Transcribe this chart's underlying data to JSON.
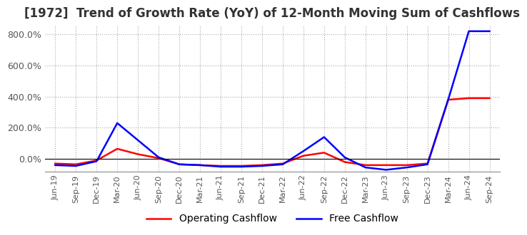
{
  "title": "[1972]  Trend of Growth Rate (YoY) of 12-Month Moving Sum of Cashflows",
  "title_fontsize": 12,
  "background_color": "#ffffff",
  "grid_color": "#aaaaaa",
  "operating_color": "#ff0000",
  "free_color": "#0000ff",
  "legend_labels": [
    "Operating Cashflow",
    "Free Cashflow"
  ],
  "ylim": [
    -80,
    860
  ],
  "yticks": [
    0,
    200,
    400,
    600,
    800
  ],
  "ytick_labels": [
    "0.0%",
    "200.0%",
    "400.0%",
    "600.0%",
    "800.0%"
  ],
  "x_labels": [
    "Jun-19",
    "Sep-19",
    "Dec-19",
    "Mar-20",
    "Jun-20",
    "Sep-20",
    "Dec-20",
    "Mar-21",
    "Jun-21",
    "Sep-21",
    "Dec-21",
    "Mar-22",
    "Jun-22",
    "Sep-22",
    "Dec-22",
    "Mar-23",
    "Jun-23",
    "Sep-23",
    "Dec-23",
    "Mar-24",
    "Jun-24",
    "Sep-24"
  ],
  "operating_cashflow": [
    -30,
    -35,
    -10,
    65,
    30,
    5,
    -35,
    -40,
    -45,
    -45,
    -40,
    -30,
    20,
    40,
    -20,
    -40,
    -40,
    -40,
    -30,
    380,
    390,
    390
  ],
  "free_cashflow": [
    -40,
    -45,
    -15,
    230,
    120,
    10,
    -35,
    -40,
    -50,
    -50,
    -45,
    -35,
    50,
    140,
    10,
    -55,
    -70,
    -55,
    -35,
    380,
    820,
    820
  ]
}
